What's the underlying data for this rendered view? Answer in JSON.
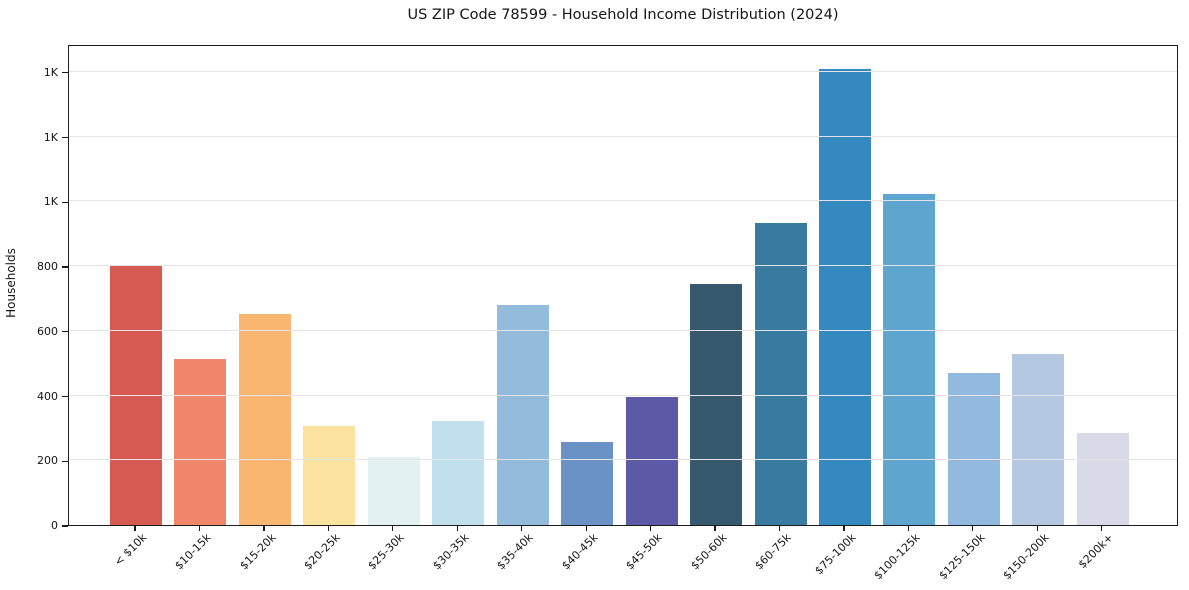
{
  "chart_data": {
    "type": "bar",
    "title": "US ZIP Code 78599 - Household Income Distribution (2024)",
    "xlabel": "",
    "ylabel": "Households",
    "categories": [
      "< $10k",
      "$10-15k",
      "$15-20k",
      "$20-25k",
      "$25-30k",
      "$30-35k",
      "$35-40k",
      "$40-45k",
      "$45-50k",
      "$50-60k",
      "$60-75k",
      "$75-100k",
      "$100-125k",
      "$125-150k",
      "$150-200k",
      "$200k+"
    ],
    "values": [
      808,
      515,
      655,
      308,
      210,
      324,
      683,
      256,
      397,
      748,
      936,
      1415,
      1026,
      473,
      531,
      287
    ],
    "bar_colors": [
      "#d65a52",
      "#f0876a",
      "#f9b671",
      "#fce3a0",
      "#e3f1f3",
      "#bfe0ec",
      "#93bcdc",
      "#6b92c6",
      "#5c5aa7",
      "#36596d",
      "#387aa0",
      "#3389c0",
      "#5ea6cf",
      "#92bade",
      "#b5c8e2",
      "#d8dae8"
    ],
    "ylim": [
      0,
      1486
    ],
    "yticks": {
      "values": [
        0,
        200,
        400,
        600,
        800,
        1000,
        1200,
        1400
      ],
      "labels": [
        "0",
        "200",
        "400",
        "600",
        "800",
        "1K",
        "1K",
        "1K"
      ]
    },
    "grid": "horizontal",
    "legend": "none",
    "colors": {
      "axis": "#1c1c1c",
      "grid": "#e4e4e8",
      "background": "#ffffff",
      "text": "#151515"
    }
  }
}
